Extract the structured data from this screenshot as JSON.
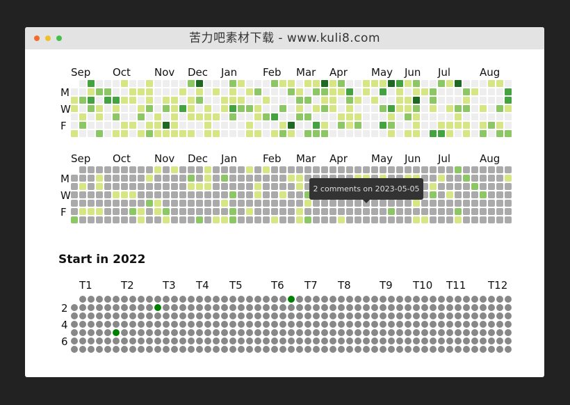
{
  "window": {
    "title": "苦力吧素材下载 - www.kuli8.com"
  },
  "heatmap1": {
    "months": [
      "Sep",
      "Oct",
      "Nov",
      "Dec",
      "Jan",
      "Feb",
      "Mar",
      "Apr",
      "May",
      "Jun",
      "Jul",
      "Aug"
    ],
    "weekdays": [
      "M",
      "W",
      "F"
    ],
    "colors": [
      "#eeeeee",
      "#d6e685",
      "#8cc665",
      "#44a340",
      "#1e6823"
    ]
  },
  "heatmap2": {
    "months": [
      "Sep",
      "Oct",
      "Nov",
      "Dec",
      "Jan",
      "Feb",
      "Mar",
      "Apr",
      "May",
      "Jun",
      "Jul",
      "Aug"
    ],
    "weekdays": [
      "M",
      "W",
      "F"
    ],
    "colors": [
      "#aaaaaa",
      "#d6e685",
      "#8cc665",
      "#44a340",
      "#1e6823"
    ],
    "tooltip": "2 comments on 2023-05-05"
  },
  "section": {
    "title": "Start in 2022"
  },
  "heatmap3": {
    "months": [
      "T1",
      "T2",
      "T3",
      "T4",
      "T5",
      "T6",
      "T7",
      "T8",
      "T9",
      "T10",
      "T11",
      "T12"
    ],
    "weekdays": [
      "2",
      "4",
      "6"
    ],
    "colors": [
      "#888888",
      "#008000"
    ]
  }
}
